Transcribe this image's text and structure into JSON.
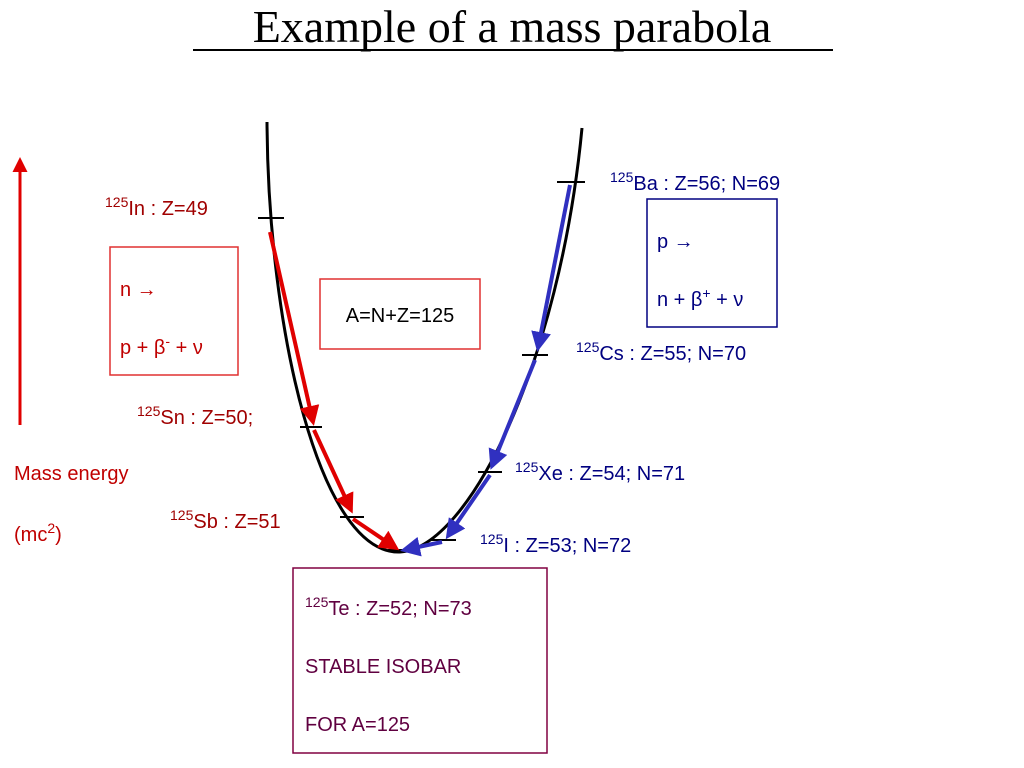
{
  "title": "Example of a mass parabola",
  "y_axis": {
    "line1": "Mass energy",
    "line2_prefix": "(mc",
    "line2_sup": "2",
    "line2_suffix": ")"
  },
  "nuclides": [
    {
      "mass": "125",
      "label": "In : Z=49"
    },
    {
      "mass": "125",
      "label": "Sn : Z=50;"
    },
    {
      "mass": "125",
      "label": "Sb : Z=51"
    },
    {
      "mass": "125",
      "label": "I : Z=53; N=72"
    },
    {
      "mass": "125",
      "label": "Xe : Z=54; N=71"
    },
    {
      "mass": "125",
      "label": "Cs : Z=55; N=70"
    },
    {
      "mass": "125",
      "label": "Ba : Z=56; N=69"
    }
  ],
  "beta_minus_box": {
    "line1": "n →",
    "line2_prefix": "p + β",
    "line2_sup": "-",
    "line2_suffix": " + ν"
  },
  "isobar_box": {
    "text": "A=N+Z=125"
  },
  "beta_plus_box": {
    "line1": "p →",
    "line2_prefix": "n + β",
    "line2_sup": "+",
    "line2_suffix": " + ν"
  },
  "stable_box": {
    "mass": "125",
    "label": "Te : Z=52; N=73",
    "line2": "STABLE ISOBAR",
    "line3": "FOR A=125"
  }
}
